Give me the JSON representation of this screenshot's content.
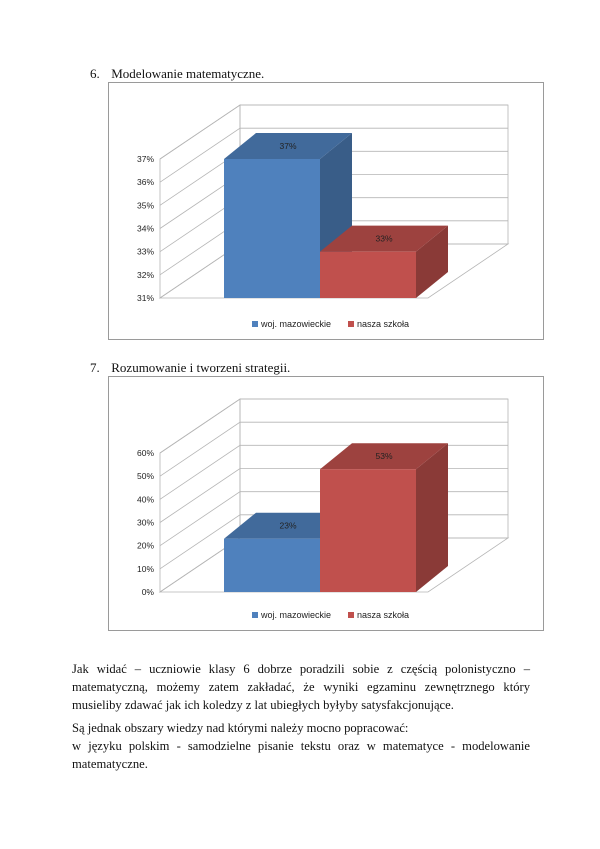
{
  "section6": {
    "number": "6.",
    "title": "Modelowanie matematyczne."
  },
  "section7": {
    "number": "7.",
    "title": "Rozumowanie i tworzeni strategii."
  },
  "chart_data": [
    {
      "type": "bar",
      "categories": [
        "woj. mazowieckie",
        "nasza szkoła"
      ],
      "values": [
        37,
        33
      ],
      "value_labels": [
        "37%",
        "33%"
      ],
      "yticks": [
        "31%",
        "32%",
        "33%",
        "34%",
        "35%",
        "36%",
        "37%"
      ],
      "ylim": [
        31,
        37
      ],
      "legend": [
        "woj. mazowieckie",
        "nasza szkoła"
      ],
      "legend_position": "bottom",
      "colors": [
        "#4f81bd",
        "#c0504d"
      ],
      "grid": true
    },
    {
      "type": "bar",
      "categories": [
        "woj. mazowieckie",
        "nasza szkoła"
      ],
      "values": [
        23,
        53
      ],
      "value_labels": [
        "23%",
        "53%"
      ],
      "yticks": [
        "0%",
        "10%",
        "20%",
        "30%",
        "40%",
        "50%",
        "60%"
      ],
      "ylim": [
        0,
        60
      ],
      "legend": [
        "woj. mazowieckie",
        "nasza szkoła"
      ],
      "legend_position": "bottom",
      "colors": [
        "#4f81bd",
        "#c0504d"
      ],
      "grid": true
    }
  ],
  "paragraph1": "Jak widać – uczniowie klasy 6 dobrze poradzili sobie z częścią polonistyczno – matematyczną, możemy zatem zakładać, że wyniki egzaminu zewnętrznego który musieliby zdawać jak ich koledzy z lat ubiegłych byłyby satysfakcjonujące.",
  "paragraph2": "Są jednak obszary wiedzy nad którymi należy mocno popracować:",
  "paragraph3": "w języku polskim - samodzielne pisanie tekstu oraz w matematyce - modelowanie matematyczne."
}
